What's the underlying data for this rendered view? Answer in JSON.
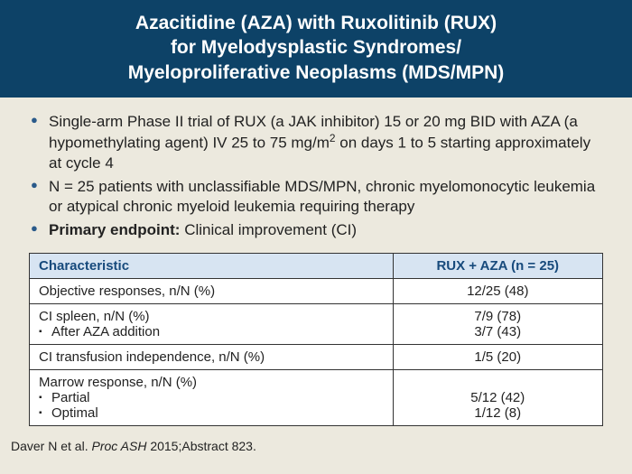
{
  "header": {
    "line1": "Azacitidine (AZA) with Ruxolitinib (RUX)",
    "line2": "for Myelodysplastic Syndromes/",
    "line3": "Myeloproliferative Neoplasms (MDS/MPN)"
  },
  "bullets": {
    "b1_pre": "Single-arm Phase II trial of RUX (a JAK inhibitor) 15 or 20 mg BID with AZA (a hypomethylating agent) IV 25 to 75 mg/m",
    "b1_sup": "2",
    "b1_post": " on days 1 to 5 starting approximately at cycle 4",
    "b2": "N = 25 patients with unclassifiable MDS/MPN, chronic myelomonocytic leukemia or atypical chronic myeloid leukemia requiring therapy",
    "b3_label": "Primary endpoint:",
    "b3_rest": " Clinical improvement (CI)"
  },
  "table": {
    "header_col1": "Characteristic",
    "header_col2": "RUX + AZA (n = 25)",
    "rows": [
      {
        "c1_main": "Objective responses, n/N (%)",
        "c1_subs": [],
        "c2_lines": [
          "12/25 (48)"
        ]
      },
      {
        "c1_main": "CI spleen, n/N (%)",
        "c1_subs": [
          "After AZA addition"
        ],
        "c2_lines": [
          "7/9 (78)",
          "3/7 (43)"
        ]
      },
      {
        "c1_main": "CI transfusion independence, n/N (%)",
        "c1_subs": [],
        "c2_lines": [
          "1/5 (20)"
        ]
      },
      {
        "c1_main": "Marrow response, n/N (%)",
        "c1_subs": [
          "Partial",
          "Optimal"
        ],
        "c2_lines": [
          "",
          "5/12 (42)",
          "1/12 (8)"
        ]
      }
    ]
  },
  "citation": {
    "author": "Daver N et al. ",
    "journal": "Proc ASH",
    "rest": " 2015;Abstract 823."
  },
  "colors": {
    "header_bg": "#0d4267",
    "page_bg": "#ece9de",
    "table_header_bg": "#d7e4f2",
    "table_header_text": "#174a7c",
    "bullet_marker": "#2a5a8a"
  }
}
